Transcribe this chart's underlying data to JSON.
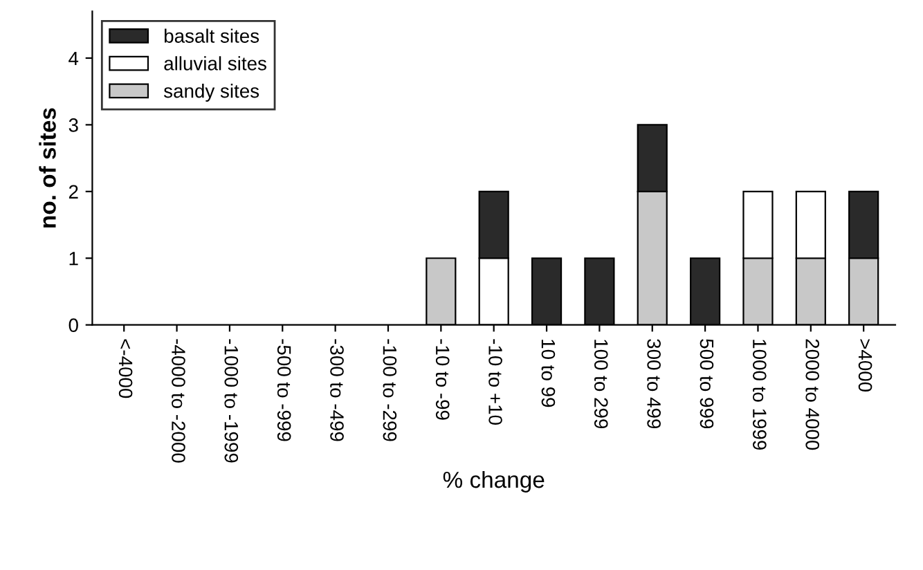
{
  "chart_data": {
    "type": "bar",
    "stacked": true,
    "xlabel": "% change",
    "ylabel": "no. of sites",
    "categories": [
      "<-4000",
      "-4000 to -2000",
      "-1000 to -1999",
      "-500 to -999",
      "-300 to -499",
      "-100 to -299",
      "-10 to -99",
      "-10 to +10",
      "10 to 99",
      "100 to 299",
      "300 to 499",
      "500 to 999",
      "1000 to 1999",
      "2000 to 4000",
      ">4000"
    ],
    "series": [
      {
        "name": "sandy sites",
        "color": "#c8c8c8",
        "values": [
          0,
          0,
          0,
          0,
          0,
          0,
          1,
          0,
          0,
          0,
          2,
          0,
          1,
          1,
          1
        ]
      },
      {
        "name": "alluvial sites",
        "color": "#ffffff",
        "values": [
          0,
          0,
          0,
          0,
          0,
          0,
          0,
          1,
          0,
          0,
          0,
          0,
          1,
          1,
          0
        ]
      },
      {
        "name": "basalt sites",
        "color": "#2a2a2a",
        "values": [
          0,
          0,
          0,
          0,
          0,
          0,
          0,
          1,
          1,
          1,
          1,
          1,
          0,
          0,
          1
        ]
      }
    ],
    "ylim": [
      0,
      4.7
    ],
    "yticks": [
      0,
      1,
      2,
      3,
      4
    ],
    "grid": false,
    "legend": "top left"
  }
}
